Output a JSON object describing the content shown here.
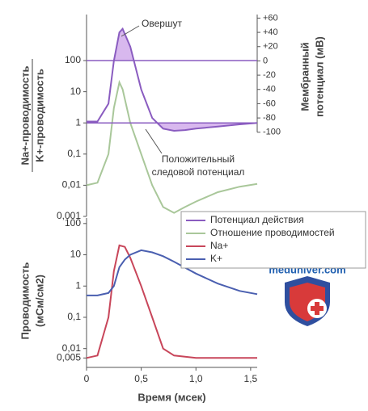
{
  "chart_data": [
    {
      "type": "line",
      "y_label_lines": [
        "Na+-проводимость",
        "K+-проводимость"
      ],
      "y2_label_lines": [
        "Мембранный",
        "потенциал (мВ)"
      ],
      "annotations": [
        "Овершут",
        "Положительный",
        "следовой потенциал"
      ],
      "ylog": true,
      "x": [
        0,
        0.1,
        0.2,
        0.25,
        0.3,
        0.33,
        0.4,
        0.5,
        0.6,
        0.7,
        0.8,
        0.9,
        1.0,
        1.2,
        1.4,
        1.56
      ],
      "xlim": [
        0,
        1.56
      ],
      "ylim": [
        0.001,
        3000
      ],
      "yticks": [
        {
          "value": 0.001,
          "label": "0,001"
        },
        {
          "value": 0.01,
          "label": "0,01"
        },
        {
          "value": 0.1,
          "label": "0,1"
        },
        1,
        10,
        100
      ],
      "y2lim": [
        -218,
        65
      ],
      "y2ticks": [
        {
          "value": 60,
          "label": "+60"
        },
        {
          "value": 40,
          "label": "+40"
        },
        {
          "value": 20,
          "label": "+20"
        },
        0,
        -20,
        -40,
        -60,
        -80,
        -100
      ],
      "reference_lines": [
        100,
        1
      ],
      "series": [
        {
          "name": "Потенциал действия",
          "color": "#8a5cc0",
          "axis": "y2",
          "values": [
            -85,
            -85,
            -60,
            0,
            40,
            45,
            20,
            -40,
            -80,
            -95,
            -98,
            -97,
            -95,
            -92,
            -89,
            -87
          ]
        },
        {
          "name": "Отношение проводимостей",
          "color": "#a9c79a",
          "values": [
            0.01,
            0.012,
            0.1,
            3,
            20,
            12,
            1,
            0.1,
            0.01,
            0.002,
            0.0013,
            0.002,
            0.003,
            0.006,
            0.009,
            0.011
          ]
        }
      ]
    },
    {
      "type": "line",
      "y_label_lines": [
        "Проводимость",
        "(мСм/см2)"
      ],
      "x_label": "Время (мсек)",
      "ylog": true,
      "legend": "upper right",
      "watermark": "meduniver.com",
      "x": [
        0,
        0.1,
        0.2,
        0.25,
        0.3,
        0.35,
        0.4,
        0.5,
        0.6,
        0.7,
        0.8,
        1.0,
        1.2,
        1.4,
        1.56
      ],
      "xlim": [
        0,
        1.56
      ],
      "xticks": [
        0,
        {
          "value": 0.5,
          "label": "0,5"
        },
        {
          "value": 1,
          "label": "1,0"
        },
        {
          "value": 1.5,
          "label": "1,5"
        }
      ],
      "ylim": [
        0.0025,
        150
      ],
      "yticks": [
        {
          "value": 0.005,
          "label": "0,005"
        },
        {
          "value": 0.01,
          "label": "0,01"
        },
        {
          "value": 0.1,
          "label": "0,1"
        },
        1,
        10,
        100
      ],
      "series": [
        {
          "name": "Na+",
          "color": "#c8465a",
          "values": [
            0.005,
            0.006,
            0.1,
            3,
            20,
            18,
            8,
            1,
            0.1,
            0.01,
            0.006,
            0.005,
            0.005,
            0.005,
            0.005
          ]
        },
        {
          "name": "K+",
          "color": "#4a5fb0",
          "values": [
            0.5,
            0.5,
            0.6,
            1,
            4,
            7,
            10,
            14,
            12,
            9,
            6,
            2.5,
            1.2,
            0.7,
            0.55
          ]
        }
      ]
    }
  ]
}
